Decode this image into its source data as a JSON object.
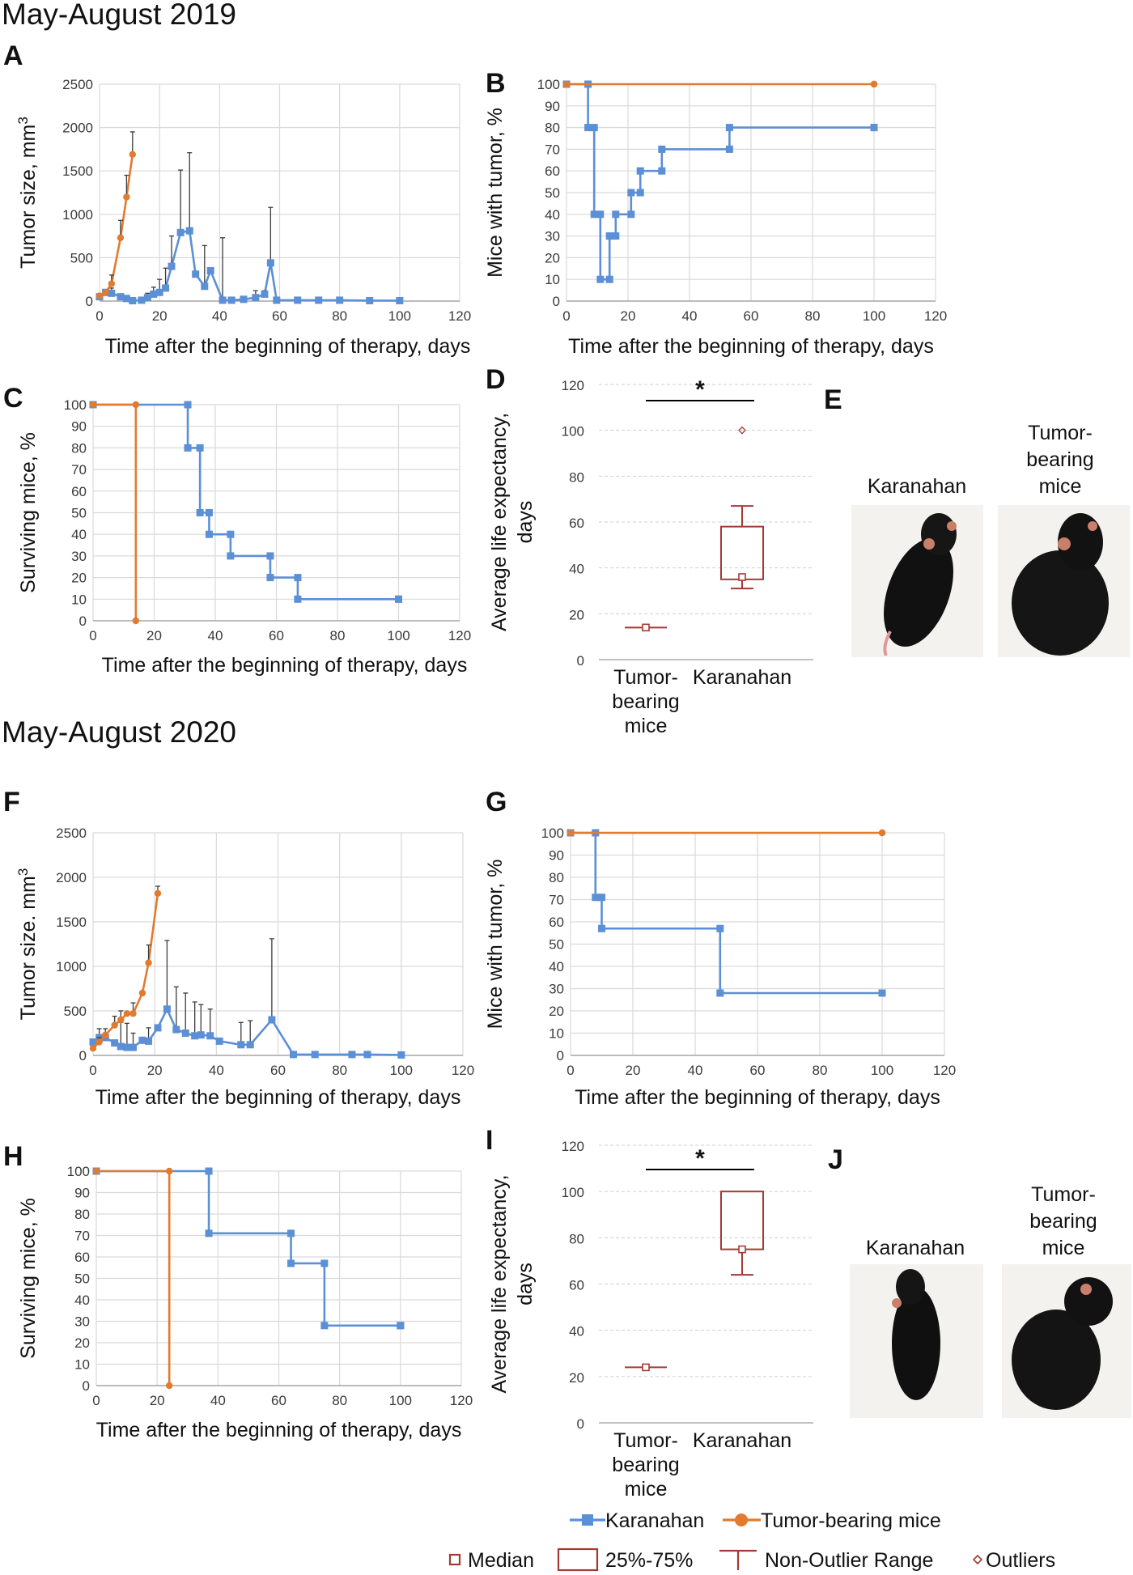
{
  "sections": [
    "May-August 2019",
    "May-August 2020"
  ],
  "colors": {
    "karanahan": "#5b8fd6",
    "tumor": "#e07b2f",
    "box": "#a33a35",
    "text": "#111111"
  },
  "legend": {
    "series": [
      "Karanahan",
      "Tumor-bearing mice"
    ],
    "box": [
      "Median",
      "25%-75%",
      "Non-Outlier Range",
      "Outliers"
    ]
  },
  "photos": [
    {
      "panel": "E",
      "labels": [
        "Karanahan",
        "Tumor-bearing mice"
      ]
    },
    {
      "panel": "J",
      "labels": [
        "Karanahan",
        "Tumor-bearing mice"
      ]
    }
  ],
  "chart_data": [
    {
      "panel": "A",
      "type": "line",
      "xlabel": "Time after the beginning of therapy, days",
      "ylabel": "Tumor size, mm3",
      "xlim": [
        0,
        120
      ],
      "ylim": [
        0,
        2500
      ],
      "xticks": [
        0,
        20,
        40,
        60,
        80,
        100,
        120
      ],
      "yticks": [
        0,
        500,
        1000,
        1500,
        2000,
        2500
      ],
      "series": [
        {
          "name": "Karanahan",
          "x": [
            0,
            2,
            4,
            7,
            9,
            11,
            14,
            16,
            18,
            20,
            22,
            24,
            27,
            30,
            32,
            35,
            37,
            41,
            44,
            48,
            52,
            55,
            57,
            59,
            66,
            73,
            80,
            90,
            100
          ],
          "y": [
            50,
            100,
            90,
            50,
            30,
            5,
            10,
            40,
            80,
            100,
            150,
            400,
            790,
            810,
            310,
            170,
            350,
            10,
            10,
            20,
            40,
            80,
            440,
            10,
            10,
            10,
            10,
            5,
            5
          ],
          "err": [
            0,
            30,
            60,
            0,
            0,
            0,
            0,
            50,
            80,
            150,
            230,
            350,
            720,
            900,
            0,
            470,
            0,
            720,
            0,
            0,
            80,
            40,
            640,
            0,
            0,
            0,
            0,
            0,
            0
          ]
        },
        {
          "name": "Tumor-bearing mice",
          "x": [
            0,
            2,
            4,
            7,
            9,
            11
          ],
          "y": [
            60,
            100,
            200,
            730,
            1200,
            1690
          ],
          "err": [
            0,
            0,
            100,
            200,
            250,
            260
          ]
        }
      ]
    },
    {
      "panel": "B",
      "type": "line",
      "xlabel": "Time after the beginning of therapy, days",
      "ylabel": "Mice with tumor, %",
      "xlim": [
        0,
        120
      ],
      "ylim": [
        0,
        100
      ],
      "xticks": [
        0,
        20,
        40,
        60,
        80,
        100,
        120
      ],
      "yticks": [
        0,
        10,
        20,
        30,
        40,
        50,
        60,
        70,
        80,
        90,
        100
      ],
      "series": [
        {
          "name": "Karanahan",
          "step": true,
          "x": [
            0,
            7,
            9,
            11,
            14,
            16,
            21,
            24,
            31,
            53,
            100
          ],
          "y": [
            100,
            80,
            40,
            10,
            30,
            40,
            50,
            60,
            70,
            80,
            80
          ]
        },
        {
          "name": "Tumor-bearing mice",
          "step": true,
          "x": [
            0,
            100
          ],
          "y": [
            100,
            100
          ]
        }
      ]
    },
    {
      "panel": "C",
      "type": "line",
      "xlabel": "Time after the beginning of therapy, days",
      "ylabel": "Surviving mice, %",
      "xlim": [
        0,
        120
      ],
      "ylim": [
        0,
        100
      ],
      "xticks": [
        0,
        20,
        40,
        60,
        80,
        100,
        120
      ],
      "yticks": [
        0,
        10,
        20,
        30,
        40,
        50,
        60,
        70,
        80,
        90,
        100
      ],
      "series": [
        {
          "name": "Karanahan",
          "step": true,
          "x": [
            0,
            31,
            35,
            38,
            45,
            58,
            67,
            100
          ],
          "y": [
            100,
            80,
            50,
            40,
            30,
            20,
            10,
            10
          ]
        },
        {
          "name": "Tumor-bearing mice",
          "step": true,
          "x": [
            0,
            14
          ],
          "y": [
            100,
            0
          ]
        }
      ]
    },
    {
      "panel": "D",
      "type": "box",
      "ylabel": "Average life expectancy, days",
      "ylim": [
        0,
        120
      ],
      "yticks": [
        0,
        20,
        40,
        60,
        80,
        100,
        120
      ],
      "categories": [
        "Tumor-bearing mice",
        "Karanahan"
      ],
      "boxes": [
        {
          "median": 14,
          "q1": 14,
          "q3": 14,
          "min": 14,
          "max": 14,
          "outliers": []
        },
        {
          "median": 36,
          "q1": 35,
          "q3": 58,
          "min": 31,
          "max": 67,
          "outliers": [
            100
          ]
        }
      ],
      "significance": "*"
    },
    {
      "panel": "F",
      "type": "line",
      "xlabel": "Time after the beginning of therapy, days",
      "ylabel": "Tumor size. mm3",
      "xlim": [
        0,
        120
      ],
      "ylim": [
        0,
        2500
      ],
      "xticks": [
        0,
        20,
        40,
        60,
        80,
        100,
        120
      ],
      "yticks": [
        0,
        500,
        1000,
        1500,
        2000,
        2500
      ],
      "series": [
        {
          "name": "Karanahan",
          "x": [
            0,
            2,
            4,
            7,
            9,
            11,
            13,
            16,
            18,
            21,
            24,
            27,
            30,
            33,
            35,
            38,
            41,
            48,
            51,
            58,
            65,
            72,
            84,
            89,
            100
          ],
          "y": [
            150,
            200,
            200,
            140,
            100,
            90,
            90,
            170,
            160,
            310,
            520,
            290,
            250,
            220,
            230,
            220,
            160,
            120,
            120,
            400,
            10,
            10,
            10,
            10,
            5
          ],
          "err": [
            0,
            100,
            100,
            0,
            270,
            270,
            160,
            0,
            150,
            0,
            770,
            480,
            450,
            380,
            340,
            300,
            0,
            250,
            270,
            910,
            0,
            0,
            0,
            0,
            0
          ]
        },
        {
          "name": "Tumor-bearing mice",
          "x": [
            0,
            2,
            4,
            7,
            9,
            11,
            13,
            16,
            18,
            21
          ],
          "y": [
            80,
            150,
            230,
            340,
            400,
            470,
            470,
            700,
            1040,
            1820
          ],
          "err": [
            0,
            50,
            0,
            100,
            100,
            0,
            120,
            0,
            200,
            80
          ]
        }
      ]
    },
    {
      "panel": "G",
      "type": "line",
      "xlabel": "Time after the beginning of therapy, days",
      "ylabel": "Mice with tumor, %",
      "xlim": [
        0,
        120
      ],
      "ylim": [
        0,
        100
      ],
      "xticks": [
        0,
        20,
        40,
        60,
        80,
        100,
        120
      ],
      "yticks": [
        0,
        10,
        20,
        30,
        40,
        50,
        60,
        70,
        80,
        90,
        100
      ],
      "series": [
        {
          "name": "Karanahan",
          "step": true,
          "x": [
            0,
            8,
            10,
            48,
            100
          ],
          "y": [
            100,
            71,
            57,
            28,
            28
          ]
        },
        {
          "name": "Tumor-bearing mice",
          "step": true,
          "x": [
            0,
            100
          ],
          "y": [
            100,
            100
          ]
        }
      ]
    },
    {
      "panel": "H",
      "type": "line",
      "xlabel": "Time after the beginning of therapy, days",
      "ylabel": "Surviving mice, %",
      "xlim": [
        0,
        120
      ],
      "ylim": [
        0,
        100
      ],
      "xticks": [
        0,
        20,
        40,
        60,
        80,
        100,
        120
      ],
      "yticks": [
        0,
        10,
        20,
        30,
        40,
        50,
        60,
        70,
        80,
        90,
        100
      ],
      "series": [
        {
          "name": "Karanahan",
          "step": true,
          "x": [
            0,
            37,
            64,
            75,
            100
          ],
          "y": [
            100,
            71,
            57,
            28,
            28
          ]
        },
        {
          "name": "Tumor-bearing mice",
          "step": true,
          "x": [
            0,
            24
          ],
          "y": [
            100,
            0
          ]
        }
      ]
    },
    {
      "panel": "I",
      "type": "box",
      "ylabel": "Average life expectancy, days",
      "ylim": [
        0,
        120
      ],
      "yticks": [
        0,
        20,
        40,
        60,
        80,
        100,
        120
      ],
      "categories": [
        "Tumor-bearing mice",
        "Karanahan"
      ],
      "boxes": [
        {
          "median": 24,
          "q1": 24,
          "q3": 24,
          "min": 24,
          "max": 24,
          "outliers": []
        },
        {
          "median": 75,
          "q1": 75,
          "q3": 100,
          "min": 64,
          "max": 100,
          "outliers": []
        }
      ],
      "significance": "*"
    }
  ]
}
